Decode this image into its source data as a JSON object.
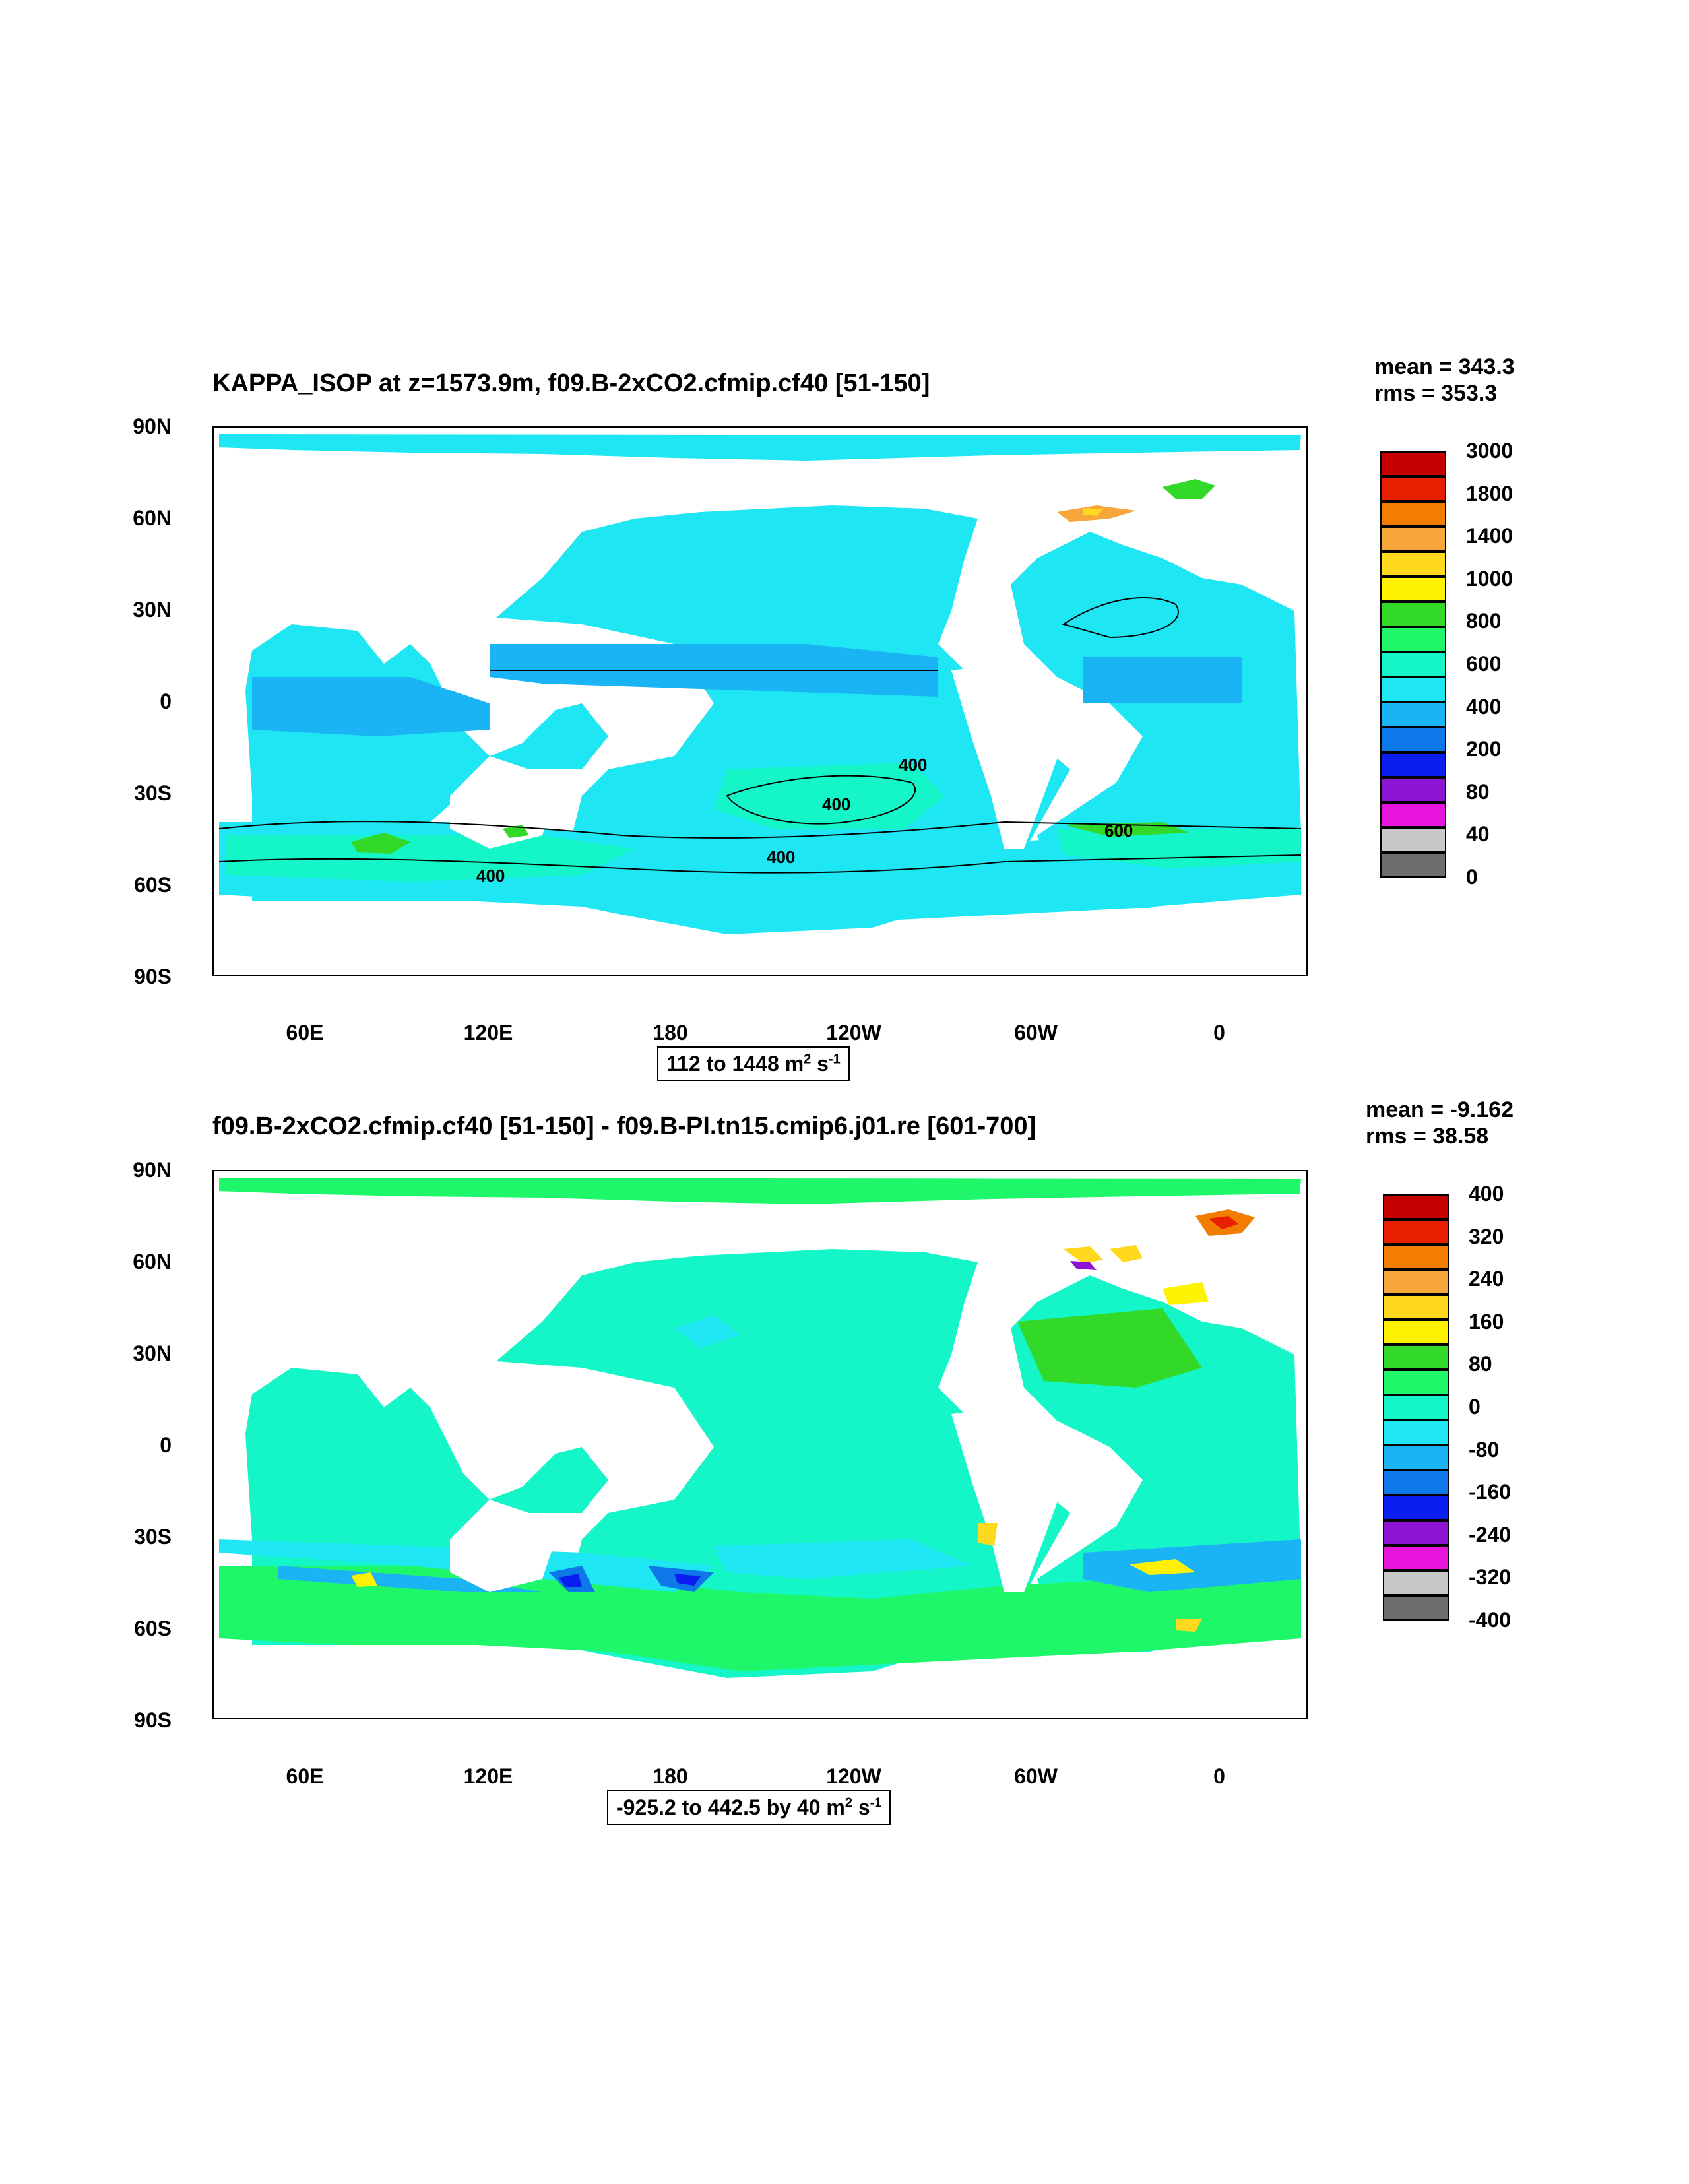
{
  "top": {
    "title": "KAPPA_ISOP at z=1573.9m, f09.B-2xCO2.cfmip.cf40 [51-150]",
    "mean": "mean = 343.3",
    "rms": "rms = 353.3",
    "range_main": "112 to 1448 m",
    "range_sup1": "2",
    "range_mid": " s",
    "range_sup2": "-1",
    "contour_labels": [
      "400",
      "400",
      "400",
      "400",
      "600"
    ],
    "colorbar": {
      "labels": [
        "3000",
        "1800",
        "1400",
        "1000",
        "800",
        "600",
        "400",
        "200",
        "80",
        "40",
        "0"
      ],
      "colors": [
        "#c40000",
        "#e81f00",
        "#f27d00",
        "#f7a63c",
        "#ffd820",
        "#fff200",
        "#33d929",
        "#1ef76a",
        "#14f5c8",
        "#1ee6f2",
        "#1ab4f5",
        "#0f78e8",
        "#0a1ef0",
        "#8c14d2",
        "#e614dc",
        "#c8c8c8",
        "#6e6e6e"
      ]
    }
  },
  "bottom": {
    "title": "f09.B-2xCO2.cfmip.cf40 [51-150] - f09.B-PI.tn15.cmip6.j01.re [601-700]",
    "mean": "mean = -9.162",
    "rms": "rms = 38.58",
    "range_main": "-925.2 to 442.5 by 40 m",
    "range_sup1": "2",
    "range_mid": " s",
    "range_sup2": "-1",
    "colorbar": {
      "labels": [
        "400",
        "320",
        "240",
        "160",
        "80",
        "0",
        "-80",
        "-160",
        "-240",
        "-320",
        "-400"
      ],
      "colors": [
        "#c40000",
        "#e81f00",
        "#f27d00",
        "#f7a63c",
        "#ffd820",
        "#fff200",
        "#33d929",
        "#1ef76a",
        "#14f5c8",
        "#1ee6f2",
        "#1ab4f5",
        "#0f78e8",
        "#0a1ef0",
        "#8c14d2",
        "#e614dc",
        "#c8c8c8",
        "#6e6e6e"
      ]
    }
  },
  "axes": {
    "lat_labels": [
      "90N",
      "60N",
      "30N",
      "0",
      "30S",
      "60S",
      "90S"
    ],
    "lon_labels": [
      "60E",
      "120E",
      "180",
      "120W",
      "60W",
      "0"
    ]
  }
}
